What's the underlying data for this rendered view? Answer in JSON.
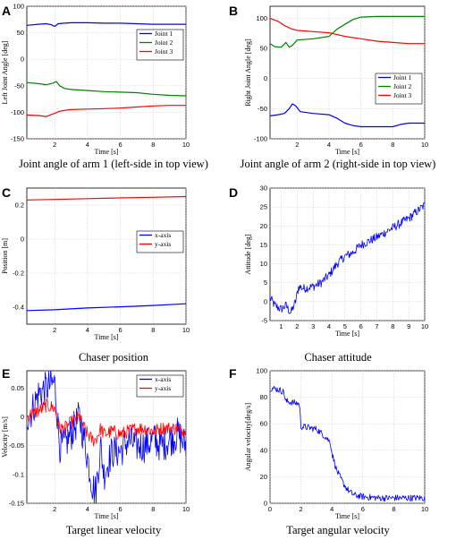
{
  "chart_data": [
    {
      "type": "line",
      "panel": "A",
      "caption": "Joint angle of arm 1 (left-side in top view)",
      "xlabel": "Time [s]",
      "ylabel": "Left Joint Angle [deg]",
      "xlim": [
        0.3,
        10
      ],
      "ylim": [
        -150,
        100
      ],
      "xticks": [
        2,
        4,
        6,
        8,
        10
      ],
      "yticks": [
        -150,
        -100,
        -50,
        0,
        50,
        100
      ],
      "grid": true,
      "legend": "top-right",
      "series": [
        {
          "name": "Joint 1",
          "color": "#0000ff",
          "x": [
            0.3,
            1.0,
            1.5,
            1.8,
            2.0,
            2.2,
            2.6,
            3.0,
            4.0,
            5.0,
            6.0,
            7.0,
            8.0,
            9.0,
            10.0
          ],
          "y": [
            64,
            66,
            67,
            65,
            62,
            67,
            68,
            69,
            69,
            68,
            68,
            67,
            66,
            66,
            66
          ]
        },
        {
          "name": "Joint 2",
          "color": "#008000",
          "x": [
            0.3,
            1.0,
            1.5,
            1.9,
            2.1,
            2.3,
            2.6,
            3.0,
            4.0,
            5.0,
            6.0,
            7.0,
            8.0,
            9.0,
            10.0
          ],
          "y": [
            -44,
            -46,
            -48,
            -45,
            -42,
            -50,
            -55,
            -57,
            -59,
            -61,
            -62,
            -63,
            -66,
            -68,
            -69
          ]
        },
        {
          "name": "Joint 3",
          "color": "#ff0000",
          "x": [
            0.3,
            1.0,
            1.5,
            1.8,
            2.0,
            2.3,
            2.7,
            3.0,
            4.0,
            5.0,
            6.0,
            7.0,
            8.0,
            9.0,
            10.0
          ],
          "y": [
            -105,
            -106,
            -108,
            -104,
            -102,
            -98,
            -96,
            -95,
            -94,
            -93,
            -92,
            -90,
            -88,
            -87,
            -87
          ]
        }
      ]
    },
    {
      "type": "line",
      "panel": "B",
      "caption": "Joint angle of arm 2 (right-side in top view)",
      "xlabel": "Time [s]",
      "ylabel": "Right Joint Angle [deg]",
      "xlim": [
        0.3,
        10
      ],
      "ylim": [
        -100,
        120
      ],
      "xticks": [
        2,
        4,
        6,
        8,
        10
      ],
      "yticks": [
        -100,
        -50,
        0,
        50,
        100
      ],
      "grid": true,
      "legend": "right",
      "series": [
        {
          "name": "Joint 1",
          "color": "#0000ff",
          "x": [
            0.3,
            0.8,
            1.2,
            1.5,
            1.7,
            1.9,
            2.2,
            3.0,
            4.0,
            4.5,
            5.0,
            5.5,
            6.0,
            7.0,
            8.0,
            8.5,
            9.0,
            10.0
          ],
          "y": [
            -62,
            -60,
            -58,
            -50,
            -42,
            -45,
            -55,
            -58,
            -60,
            -66,
            -74,
            -78,
            -80,
            -80,
            -80,
            -76,
            -74,
            -74
          ]
        },
        {
          "name": "Joint 2",
          "color": "#008000",
          "x": [
            0.3,
            0.6,
            1.0,
            1.3,
            1.5,
            1.7,
            2.0,
            3.0,
            4.0,
            4.5,
            5.0,
            5.5,
            6.0,
            7.0,
            8.0,
            9.0,
            10.0
          ],
          "y": [
            58,
            53,
            52,
            60,
            52,
            55,
            64,
            66,
            70,
            82,
            90,
            98,
            102,
            103,
            103,
            103,
            103
          ]
        },
        {
          "name": "Joint 3",
          "color": "#ff0000",
          "x": [
            0.3,
            0.8,
            1.2,
            1.6,
            2.0,
            3.0,
            4.0,
            5.0,
            6.0,
            7.0,
            8.0,
            9.0,
            10.0
          ],
          "y": [
            100,
            95,
            88,
            83,
            80,
            78,
            76,
            70,
            66,
            62,
            60,
            58,
            58
          ]
        }
      ]
    },
    {
      "type": "line",
      "panel": "C",
      "caption": "Chaser position",
      "xlabel": "Time [s]",
      "ylabel": "Position [m]",
      "xlim": [
        0.3,
        10
      ],
      "ylim": [
        -0.5,
        0.3
      ],
      "xticks": [
        2,
        4,
        6,
        8,
        10
      ],
      "yticks": [
        -0.4,
        -0.2,
        0,
        0.2
      ],
      "grid": true,
      "legend": "top-right",
      "series": [
        {
          "name": "x-axis",
          "color": "#0000ff",
          "x": [
            0.3,
            2.0,
            4.0,
            6.0,
            8.0,
            10.0
          ],
          "y": [
            -0.42,
            -0.415,
            -0.405,
            -0.398,
            -0.39,
            -0.38
          ]
        },
        {
          "name": "y-axis",
          "color": "#ff0000",
          "x": [
            0.3,
            2.0,
            4.0,
            6.0,
            8.0,
            10.0
          ],
          "y": [
            0.23,
            0.233,
            0.238,
            0.242,
            0.246,
            0.25
          ]
        }
      ]
    },
    {
      "type": "line",
      "panel": "D",
      "caption": "Chaser attitude",
      "xlabel": "Time [s]",
      "ylabel": "Attitude [deg]",
      "xlim": [
        0.3,
        10
      ],
      "ylim": [
        -5,
        30
      ],
      "xticks": [
        1,
        2,
        3,
        4,
        5,
        6,
        7,
        8,
        9,
        10
      ],
      "yticks": [
        -5,
        0,
        5,
        10,
        15,
        20,
        25,
        30
      ],
      "grid": true,
      "legend": "none",
      "series": [
        {
          "name": "",
          "color": "#0000ff",
          "noise": 1.2,
          "x": [
            0.3,
            0.6,
            1.0,
            1.3,
            1.6,
            1.9,
            2.1,
            2.4,
            3.0,
            3.5,
            4.0,
            4.5,
            5.0,
            5.5,
            6.0,
            7.0,
            8.0,
            9.0,
            10.0
          ],
          "y": [
            1,
            -1,
            -2,
            -1,
            -3,
            0,
            4,
            3.5,
            4,
            5,
            7,
            10,
            12,
            13,
            15,
            17,
            19.5,
            22,
            25.5
          ]
        }
      ]
    },
    {
      "type": "line",
      "panel": "E",
      "caption": "Target linear velocity",
      "xlabel": "Time [s]",
      "ylabel": "Velocity [m/s]",
      "xlim": [
        0.3,
        10
      ],
      "ylim": [
        -0.15,
        0.08
      ],
      "xticks": [
        2,
        4,
        6,
        8,
        10
      ],
      "yticks": [
        -0.15,
        -0.1,
        -0.05,
        0,
        0.05
      ],
      "grid": true,
      "legend": "top-right",
      "series": [
        {
          "name": "x-axis",
          "color": "#0000ff",
          "noise": 0.03,
          "x": [
            0.3,
            0.6,
            1.0,
            1.5,
            2.0,
            2.3,
            2.6,
            3.0,
            3.5,
            3.8,
            4.0,
            4.3,
            4.5,
            4.8,
            5.0,
            5.5,
            6.0,
            6.5,
            7.0,
            7.5,
            8.0,
            8.5,
            9.0,
            9.5,
            10.0
          ],
          "y": [
            0.0,
            0.01,
            0.04,
            0.05,
            0.06,
            -0.05,
            -0.05,
            -0.03,
            0.0,
            -0.04,
            -0.07,
            -0.12,
            -0.13,
            -0.05,
            -0.1,
            -0.06,
            -0.06,
            -0.04,
            -0.05,
            -0.05,
            -0.04,
            -0.05,
            -0.04,
            -0.03,
            -0.05
          ]
        },
        {
          "name": "y-axis",
          "color": "#ff0000",
          "noise": 0.012,
          "x": [
            0.3,
            0.6,
            1.0,
            1.5,
            2.0,
            2.3,
            2.6,
            3.0,
            3.5,
            3.8,
            4.0,
            4.3,
            4.5,
            4.8,
            5.0,
            5.5,
            6.0,
            6.5,
            7.0,
            7.5,
            8.0,
            8.5,
            9.0,
            9.5,
            10.0
          ],
          "y": [
            0.0,
            0.005,
            0.01,
            0.02,
            0.015,
            -0.02,
            -0.02,
            -0.01,
            0.0,
            -0.02,
            -0.03,
            -0.04,
            -0.04,
            -0.02,
            -0.03,
            -0.025,
            -0.03,
            -0.025,
            -0.02,
            -0.02,
            -0.025,
            -0.02,
            -0.02,
            -0.02,
            -0.025
          ]
        }
      ]
    },
    {
      "type": "line",
      "panel": "F",
      "caption": "Target angular velocity",
      "xlabel": "Time [s]",
      "ylabel": "Angular velocity[deg/s]",
      "xlim": [
        0,
        10
      ],
      "ylim": [
        0,
        100
      ],
      "xticks": [
        0,
        2,
        4,
        6,
        8,
        10
      ],
      "yticks": [
        0,
        20,
        40,
        60,
        80,
        100
      ],
      "grid": true,
      "legend": "none",
      "series": [
        {
          "name": "",
          "color": "#0000ff",
          "noise": 2.5,
          "x": [
            0.0,
            0.5,
            0.9,
            1.0,
            1.5,
            1.9,
            2.0,
            2.5,
            3.0,
            3.4,
            3.6,
            3.9,
            4.0,
            4.3,
            4.6,
            4.9,
            5.2,
            5.5,
            6.0,
            7.0,
            8.0,
            9.0,
            10.0
          ],
          "y": [
            87,
            86,
            84,
            77,
            76,
            75,
            58,
            57,
            56,
            52,
            50,
            46,
            38,
            25,
            18,
            12,
            8,
            6,
            5,
            4,
            4,
            4,
            4
          ]
        }
      ]
    }
  ]
}
